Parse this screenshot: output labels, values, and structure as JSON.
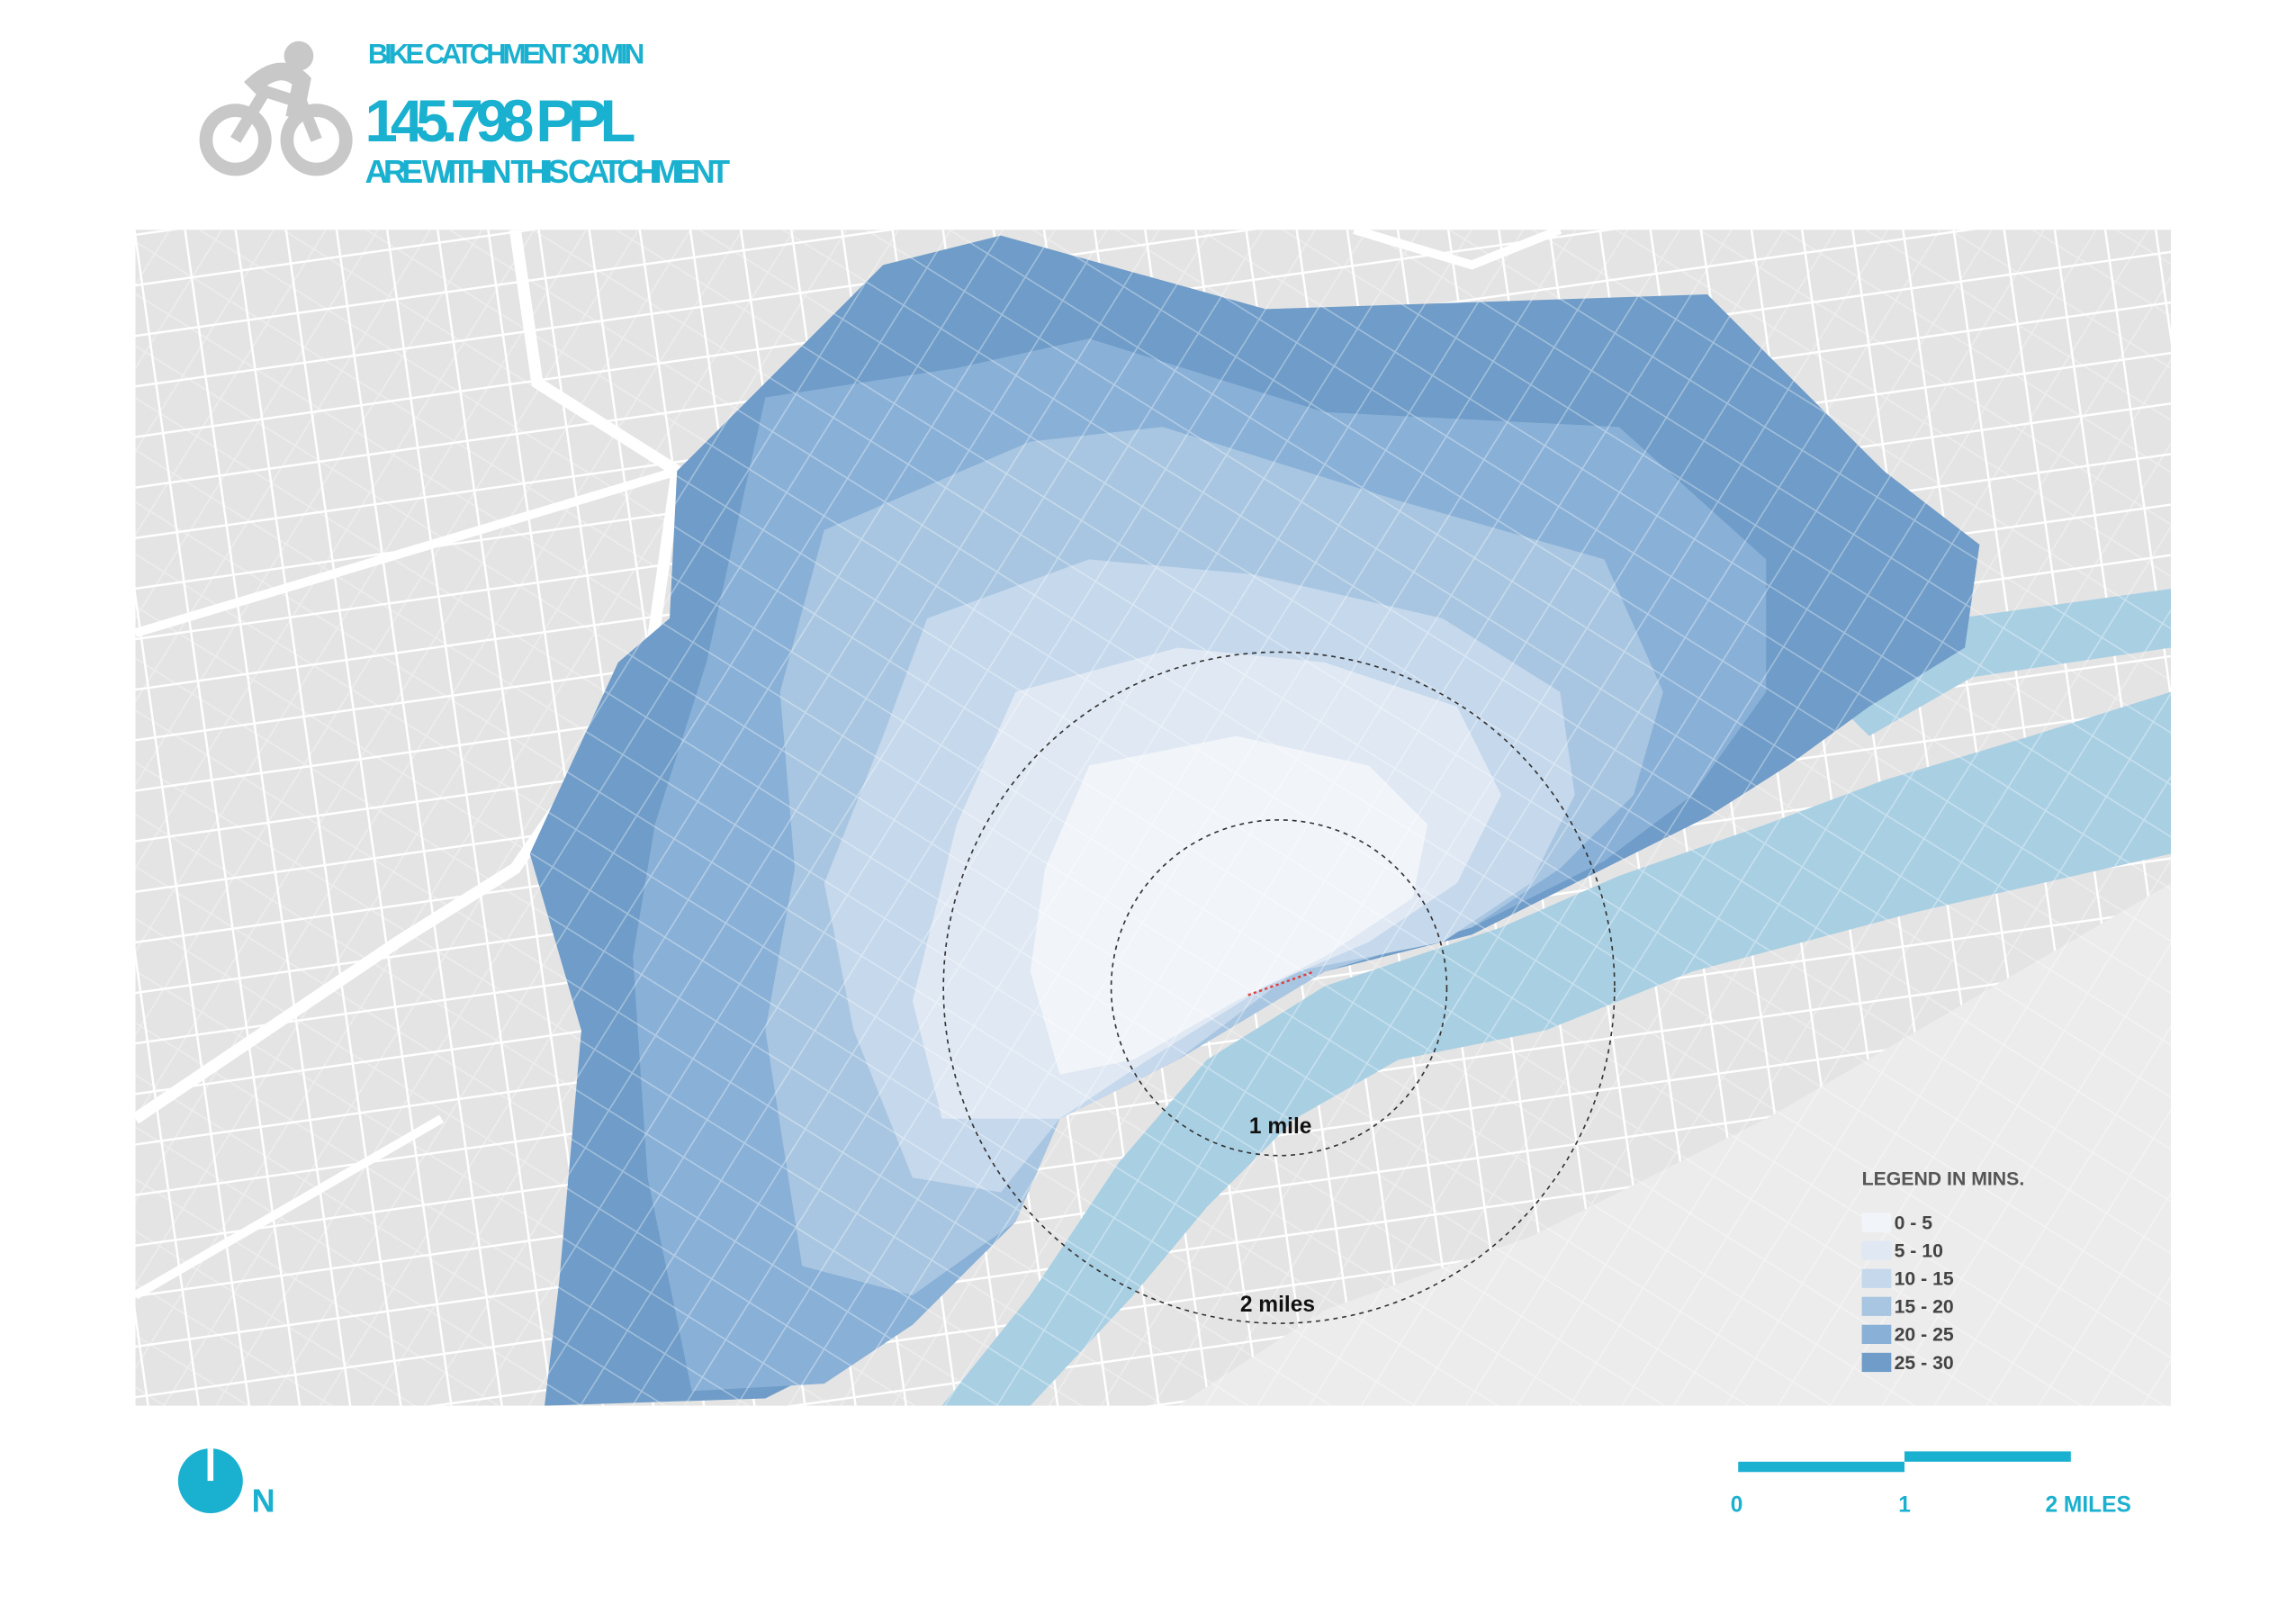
{
  "header": {
    "title": "BIKE CATCHMENT 30 MIN",
    "population": "145.798 PPL",
    "subtitle": "ARE WITHIN THIS CATCHMENT"
  },
  "map": {
    "rings": [
      "1 mile",
      "2 miles"
    ],
    "legend": {
      "title": "LEGEND IN MINS.",
      "items": [
        {
          "label": "0 - 5",
          "color": "#f1f4f9"
        },
        {
          "label": "5 - 10",
          "color": "#dfe8f3"
        },
        {
          "label": "10 - 15",
          "color": "#c5d8ec"
        },
        {
          "label": "15 - 20",
          "color": "#a8c6e1"
        },
        {
          "label": "20 - 25",
          "color": "#89b0d7"
        },
        {
          "label": "25 - 30",
          "color": "#6f9cc8"
        }
      ]
    }
  },
  "north": "N",
  "scale": [
    "0",
    "1",
    "2 MILES"
  ]
}
